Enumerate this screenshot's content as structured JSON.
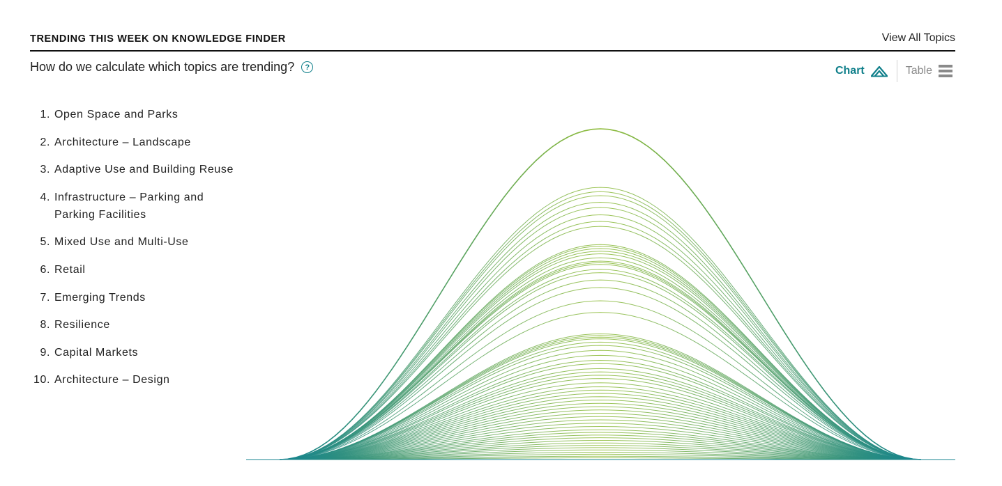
{
  "header": {
    "title": "TRENDING THIS WEEK ON KNOWLEDGE FINDER",
    "view_all": "View All Topics"
  },
  "subheader": {
    "question": "How do we calculate which topics are trending?",
    "help_icon": "question-circle-icon"
  },
  "view_toggle": {
    "chart_label": "Chart",
    "chart_icon": "mountain-peak-icon",
    "table_label": "Table",
    "table_icon": "list-lines-icon",
    "active": "chart",
    "active_color": "#0f7f8a",
    "inactive_color": "#8a8a8a"
  },
  "topics": [
    {
      "rank": "1",
      "label": "Open Space and Parks"
    },
    {
      "rank": "2",
      "label": "Architecture – Landscape"
    },
    {
      "rank": "3",
      "label": "Adaptive Use and Building Reuse"
    },
    {
      "rank": "4",
      "label": "Infrastructure – Parking and Parking Facilities"
    },
    {
      "rank": "5",
      "label": "Mixed Use and Multi-Use"
    },
    {
      "rank": "6",
      "label": "Retail"
    },
    {
      "rank": "7",
      "label": "Emerging Trends"
    },
    {
      "rank": "8",
      "label": "Resilience"
    },
    {
      "rank": "9",
      "label": "Capital Markets"
    },
    {
      "rank": "10",
      "label": "Architecture – Design"
    }
  ],
  "chart_data": {
    "type": "area",
    "gradient": {
      "edge_color": "#14838f",
      "peak_color": "#8fbc3a"
    },
    "series": [
      {
        "values": [
          1.0
        ]
      },
      {
        "values": [
          0.823
        ]
      },
      {
        "values": [
          0.81
        ]
      },
      {
        "values": [
          0.798
        ]
      },
      {
        "values": [
          0.778
        ]
      },
      {
        "values": [
          0.762
        ]
      },
      {
        "values": [
          0.74
        ]
      },
      {
        "values": [
          0.72
        ]
      },
      {
        "values": [
          0.705
        ]
      },
      {
        "values": [
          0.65
        ]
      },
      {
        "values": [
          0.645
        ]
      },
      {
        "values": [
          0.638
        ]
      },
      {
        "values": [
          0.63
        ]
      },
      {
        "values": [
          0.622
        ]
      },
      {
        "values": [
          0.61
        ]
      },
      {
        "values": [
          0.6
        ]
      },
      {
        "values": [
          0.595
        ]
      },
      {
        "values": [
          0.59
        ]
      },
      {
        "values": [
          0.575
        ]
      },
      {
        "values": [
          0.565
        ]
      },
      {
        "values": [
          0.543
        ]
      },
      {
        "values": [
          0.52
        ]
      },
      {
        "values": [
          0.48
        ]
      },
      {
        "values": [
          0.445
        ]
      },
      {
        "values": [
          0.38
        ]
      },
      {
        "values": [
          0.375
        ]
      },
      {
        "values": [
          0.37
        ]
      },
      {
        "values": [
          0.365
        ]
      },
      {
        "values": [
          0.355
        ]
      },
      {
        "values": [
          0.345
        ]
      },
      {
        "values": [
          0.33
        ]
      },
      {
        "values": [
          0.315
        ]
      },
      {
        "values": [
          0.3
        ]
      },
      {
        "values": [
          0.29
        ]
      },
      {
        "values": [
          0.275
        ]
      },
      {
        "values": [
          0.265
        ]
      },
      {
        "values": [
          0.255
        ]
      },
      {
        "values": [
          0.245
        ]
      },
      {
        "values": [
          0.232
        ]
      },
      {
        "values": [
          0.22
        ]
      },
      {
        "values": [
          0.21
        ]
      },
      {
        "values": [
          0.2
        ]
      },
      {
        "values": [
          0.19
        ]
      },
      {
        "values": [
          0.18
        ]
      },
      {
        "values": [
          0.17
        ]
      },
      {
        "values": [
          0.16
        ]
      },
      {
        "values": [
          0.15
        ]
      },
      {
        "values": [
          0.14
        ]
      },
      {
        "values": [
          0.13
        ]
      },
      {
        "values": [
          0.12
        ]
      },
      {
        "values": [
          0.11
        ]
      },
      {
        "values": [
          0.1
        ]
      },
      {
        "values": [
          0.09
        ]
      },
      {
        "values": [
          0.082
        ]
      },
      {
        "values": [
          0.074
        ]
      },
      {
        "values": [
          0.066
        ]
      },
      {
        "values": [
          0.058
        ]
      },
      {
        "values": [
          0.05
        ]
      },
      {
        "values": [
          0.043
        ]
      },
      {
        "values": [
          0.036
        ]
      },
      {
        "values": [
          0.029
        ]
      },
      {
        "values": [
          0.022
        ]
      },
      {
        "values": [
          0.016
        ]
      },
      {
        "values": [
          0.01
        ]
      },
      {
        "values": [
          0.005
        ]
      }
    ]
  }
}
